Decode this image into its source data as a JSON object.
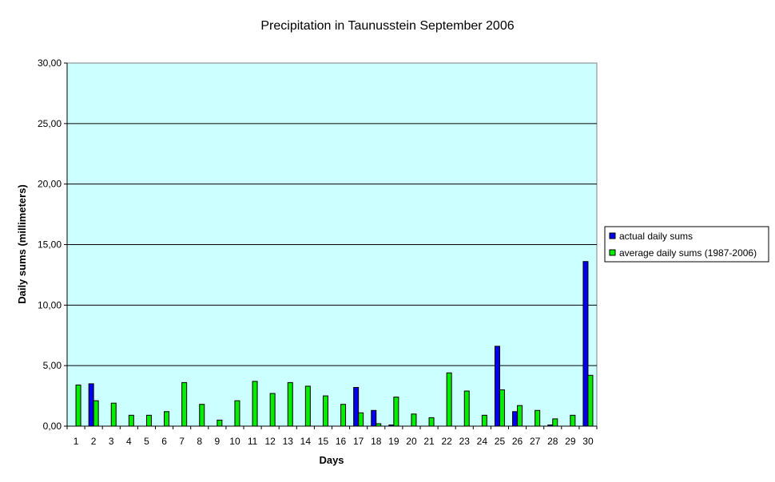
{
  "chart_data": {
    "type": "bar",
    "title": "Precipitation in Taunusstein  September  2006",
    "xlabel": "Days",
    "ylabel": "Daily sums  (millimeters)",
    "ylim": [
      0,
      30
    ],
    "yticks": [
      "0,00",
      "5,00",
      "10,00",
      "15,00",
      "20,00",
      "25,00",
      "30,00"
    ],
    "categories": [
      "1",
      "2",
      "3",
      "4",
      "5",
      "6",
      "7",
      "8",
      "9",
      "10",
      "11",
      "12",
      "13",
      "14",
      "15",
      "16",
      "17",
      "18",
      "19",
      "20",
      "21",
      "22",
      "23",
      "24",
      "25",
      "26",
      "27",
      "28",
      "29",
      "30"
    ],
    "series": [
      {
        "name": "actual daily sums",
        "color": "#0000ee",
        "values": [
          0,
          3.5,
          0,
          0,
          0,
          0,
          0,
          0,
          0,
          0,
          0,
          0,
          0,
          0,
          0,
          0,
          3.2,
          1.3,
          0.1,
          0,
          0,
          0,
          0,
          0,
          6.6,
          1.2,
          0,
          0.1,
          0,
          13.6
        ]
      },
      {
        "name": "average daily sums (1987-2006)",
        "color": "#00ee00",
        "values": [
          3.4,
          2.1,
          1.9,
          0.9,
          0.9,
          1.2,
          3.6,
          1.8,
          0.5,
          2.1,
          3.7,
          2.7,
          3.6,
          3.3,
          2.5,
          1.8,
          1.1,
          0.2,
          2.4,
          1.0,
          0.7,
          4.4,
          2.9,
          0.9,
          3.0,
          1.7,
          1.3,
          0.6,
          0.9,
          4.2
        ]
      }
    ],
    "plot_background": "#ccffff",
    "grid": true,
    "legend_position": "right"
  }
}
